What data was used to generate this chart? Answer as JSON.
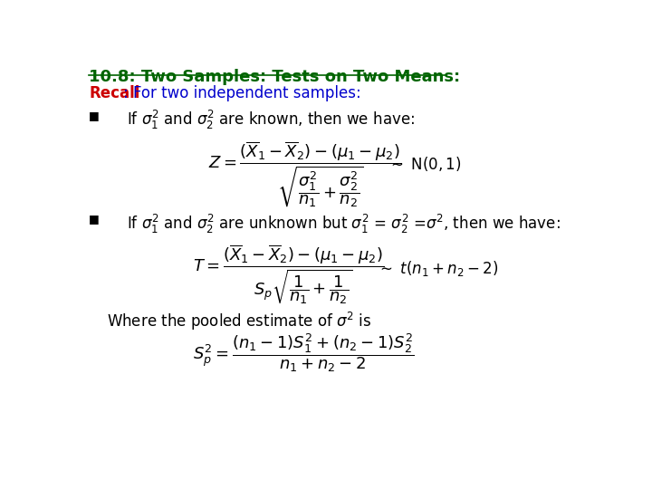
{
  "title": "10.8: Two Samples: Tests on Two Means:",
  "title_color": "#006400",
  "recall_red": "Recall",
  "recall_rest": ": For two independent samples:",
  "recall_red_color": "#CC0000",
  "recall_blue_color": "#0000CC",
  "bg_color": "#FFFFFF",
  "text_color": "#000000"
}
